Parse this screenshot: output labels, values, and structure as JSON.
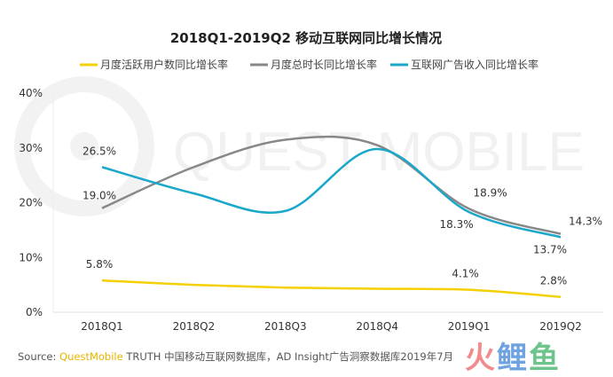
{
  "chart_data": {
    "type": "line",
    "title": "2018Q1-2019Q2 移动互联网同比增长情况",
    "categories": [
      "2018Q1",
      "2018Q2",
      "2018Q3",
      "2018Q4",
      "2019Q1",
      "2019Q2"
    ],
    "yticks": [
      "0%",
      "10%",
      "20%",
      "30%",
      "40%"
    ],
    "ylim": [
      0,
      40
    ],
    "legend_position": "top",
    "watermark": "QUEST MOBILE",
    "series": [
      {
        "name": "月度活跃用户数同比增长率",
        "color": "#f5d000",
        "values": [
          5.8,
          5.0,
          4.5,
          4.3,
          4.1,
          2.8
        ],
        "labels": [
          {
            "i": 0,
            "text": "5.8%"
          },
          {
            "i": 4,
            "text": "4.1%"
          },
          {
            "i": 5,
            "text": "2.8%"
          }
        ]
      },
      {
        "name": "月度总时长同比增长率",
        "color": "#888888",
        "values": [
          19.0,
          26.5,
          31.5,
          30.5,
          18.9,
          14.3
        ],
        "labels": [
          {
            "i": 0,
            "text": "19.0%"
          },
          {
            "i": 4,
            "text": "18.9%"
          },
          {
            "i": 5,
            "text": "14.3%"
          }
        ]
      },
      {
        "name": "互联网广告收入同比增长率",
        "color": "#1aa7c9",
        "values": [
          26.5,
          21.7,
          18.5,
          29.8,
          18.3,
          13.7
        ],
        "labels": [
          {
            "i": 0,
            "text": "26.5%"
          },
          {
            "i": 4,
            "text": "18.3%"
          },
          {
            "i": 5,
            "text": "13.7%"
          }
        ]
      }
    ]
  },
  "source": {
    "prefix": "Source:",
    "brand": "QuestMobile",
    "text": "TRUTH 中国移动互联网数据库，AD Insight广告洞察数据库2019年7月"
  },
  "logo": "火鲤鱼"
}
